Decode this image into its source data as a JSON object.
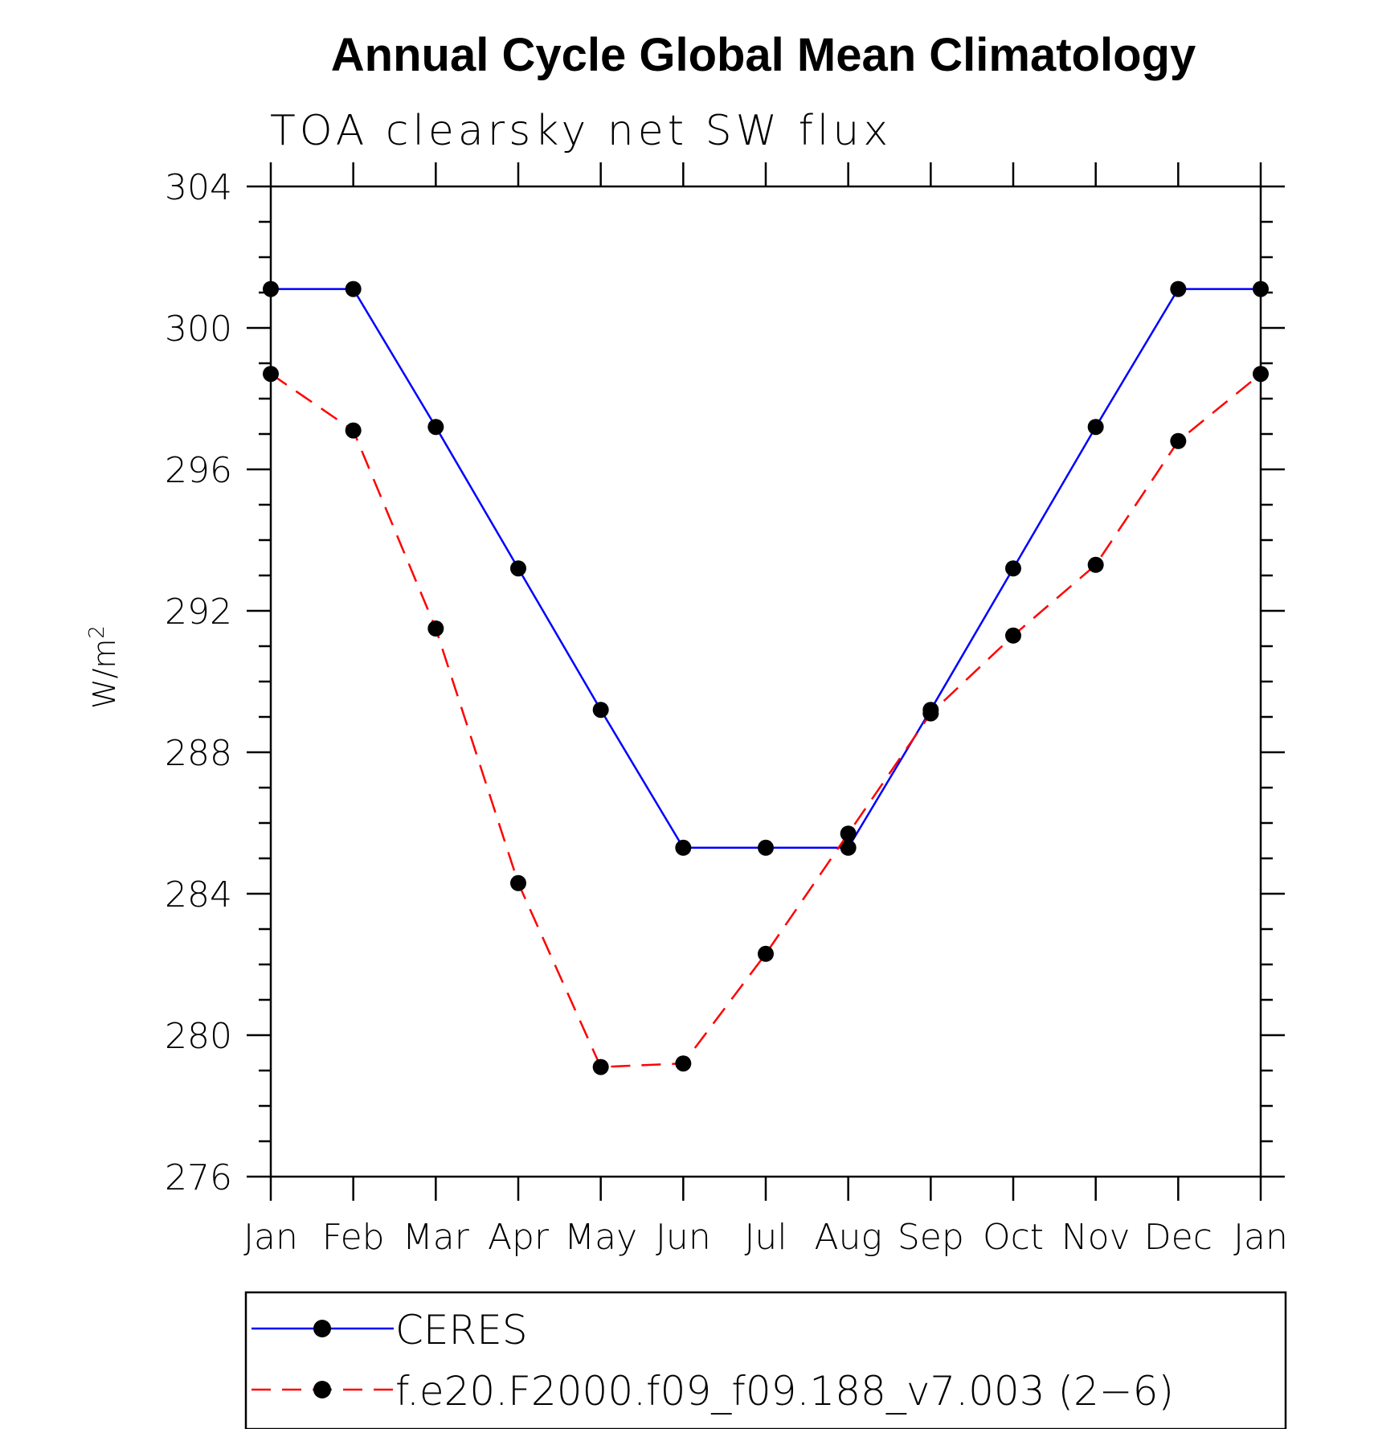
{
  "chart_data": {
    "type": "line",
    "title": "Annual Cycle Global Mean Climatology",
    "subtitle": "TOA clearsky net SW flux",
    "ylabel": "W/m",
    "ylabel_sup": "2",
    "xlabel": "",
    "categories": [
      "Jan",
      "Feb",
      "Mar",
      "Apr",
      "May",
      "Jun",
      "Jul",
      "Aug",
      "Sep",
      "Oct",
      "Nov",
      "Dec",
      "Jan"
    ],
    "ylim": [
      276,
      304
    ],
    "yticks": [
      276,
      280,
      284,
      288,
      292,
      296,
      300,
      304
    ],
    "grid": false,
    "legend_placement": "bottom",
    "series": [
      {
        "name": "CERES",
        "color": "#0000ff",
        "dash": "solid",
        "values": [
          301.1,
          301.1,
          297.2,
          293.2,
          289.2,
          285.3,
          285.3,
          285.3,
          289.2,
          293.2,
          297.2,
          301.1,
          301.1
        ]
      },
      {
        "name": "f.e20.F2000.f09_f09.188_v7.003 (2−6)",
        "color": "#ff0000",
        "dash": "dashed",
        "values": [
          298.7,
          297.1,
          291.5,
          284.3,
          279.1,
          279.2,
          282.3,
          285.7,
          289.1,
          291.3,
          293.3,
          296.8,
          298.7
        ]
      }
    ]
  }
}
